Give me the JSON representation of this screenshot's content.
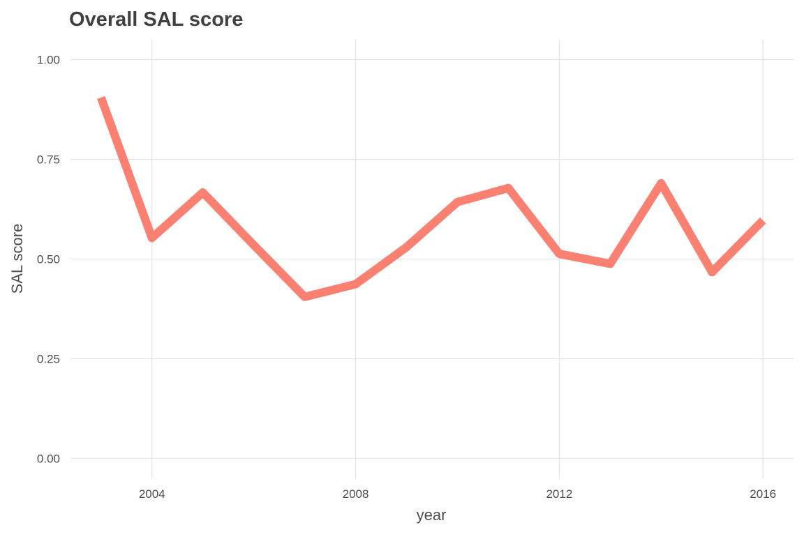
{
  "chart_data": {
    "type": "line",
    "title": "Overall SAL score",
    "xlabel": "year",
    "ylabel": "SAL score",
    "xlim": [
      2002.4,
      2016.6
    ],
    "ylim": [
      -0.05,
      1.05
    ],
    "xticks": [
      2004,
      2008,
      2012,
      2016
    ],
    "xtick_labels": [
      "2004",
      "2008",
      "2012",
      "2016"
    ],
    "yticks": [
      0.0,
      0.25,
      0.5,
      0.75,
      1.0
    ],
    "ytick_labels": [
      "0.00",
      "0.25",
      "0.50",
      "0.75",
      "1.00"
    ],
    "grid": true,
    "legend": "none",
    "x": [
      2003,
      2004,
      2005,
      2006,
      2007,
      2008,
      2009,
      2010,
      2011,
      2012,
      2013,
      2014,
      2015,
      2016
    ],
    "series": [
      {
        "color": "#FA8072",
        "values": [
          0.905,
          0.553,
          0.667,
          0.535,
          0.405,
          0.437,
          0.53,
          0.643,
          0.678,
          0.513,
          0.488,
          0.69,
          0.467,
          0.597
        ]
      }
    ],
    "colors": {
      "line": "#FA8072",
      "grid": "#E6E6E6",
      "text": "#4D4D4D",
      "title": "#404040",
      "background": "#FFFFFF"
    }
  }
}
